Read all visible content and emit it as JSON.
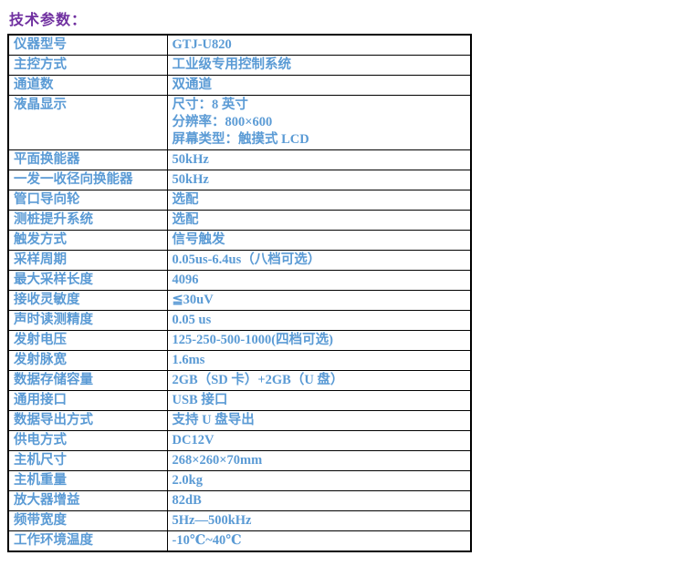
{
  "title": "技术参数：",
  "colors": {
    "title_text": "#7030A0",
    "table_text": "#5B9BD5",
    "table_border": "#000000"
  },
  "table": {
    "rows": [
      {
        "label": "仪器型号",
        "value": "GTJ-U820"
      },
      {
        "label": "主控方式",
        "value": "工业级专用控制系统"
      },
      {
        "label": "通道数",
        "value": "双通道"
      },
      {
        "label": "液晶显示",
        "value": "尺寸：8 英寸\n分辨率：800×600\n屏幕类型：触摸式 LCD"
      },
      {
        "label": "平面换能器",
        "value": "50kHz"
      },
      {
        "label": "一发一收径向换能器",
        "value": "50kHz"
      },
      {
        "label": "管口导向轮",
        "value": "选配"
      },
      {
        "label": "测桩提升系统",
        "value": "选配"
      },
      {
        "label": "触发方式",
        "value": "信号触发"
      },
      {
        "label": "采样周期",
        "value": "0.05us-6.4us（八档可选）"
      },
      {
        "label": "最大采样长度",
        "value": "4096"
      },
      {
        "label": "接收灵敏度",
        "value": "≦30uV"
      },
      {
        "label": "声时读测精度",
        "value": "0.05 us"
      },
      {
        "label": "发射电压",
        "value": "125-250-500-1000(四档可选)"
      },
      {
        "label": "发射脉宽",
        "value": "1.6ms"
      },
      {
        "label": "数据存储容量",
        "value": "2GB（SD 卡）+2GB（U 盘）"
      },
      {
        "label": "通用接口",
        "value": "USB 接口"
      },
      {
        "label": "数据导出方式",
        "value": "支持 U 盘导出"
      },
      {
        "label": "供电方式",
        "value": "DC12V"
      },
      {
        "label": "主机尺寸",
        "value": "268×260×70mm"
      },
      {
        "label": "主机重量",
        "value": "2.0kg"
      },
      {
        "label": "放大器增益",
        "value": "82dB"
      },
      {
        "label": "频带宽度",
        "value": "5Hz—500kHz"
      },
      {
        "label": "工作环境温度",
        "value": "-10℃~40℃"
      }
    ]
  }
}
